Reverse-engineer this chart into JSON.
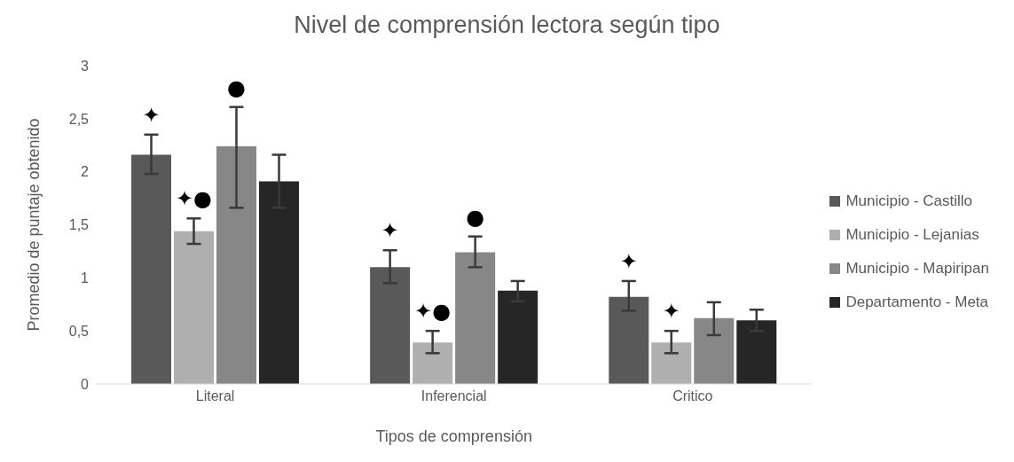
{
  "chart_data": {
    "type": "bar",
    "title": "Nivel de comprensión lectora según tipo",
    "xlabel": "Tipos de comprensión",
    "ylabel": "Promedio de puntaje obtenido",
    "categories": [
      "Literal",
      "Inferencial",
      "Critico"
    ],
    "series": [
      {
        "name": "Municipio - Castillo",
        "color": "#595959",
        "values": [
          2.16,
          1.1,
          0.82
        ],
        "errors": [
          [
            1.98,
            2.35
          ],
          [
            0.95,
            1.26
          ],
          [
            0.69,
            0.97
          ]
        ],
        "value_labels": [
          "✦",
          "✦",
          "✦"
        ]
      },
      {
        "name": "Municipio - Lejanias",
        "color": "#afafaf",
        "values": [
          1.44,
          0.39,
          0.39
        ],
        "errors": [
          [
            1.32,
            1.56
          ],
          [
            0.29,
            0.5
          ],
          [
            0.29,
            0.5
          ]
        ],
        "value_labels": [
          "✦●",
          "✦●",
          "✦"
        ]
      },
      {
        "name": "Municipio - Mapiripan",
        "color": "#878787",
        "values": [
          2.24,
          1.24,
          0.62
        ],
        "errors": [
          [
            1.66,
            2.61
          ],
          [
            1.1,
            1.39
          ],
          [
            0.46,
            0.77
          ]
        ],
        "value_labels": [
          "●",
          "●",
          null
        ]
      },
      {
        "name": "Departamento - Meta",
        "color": "#262626",
        "values": [
          1.91,
          0.88,
          0.6
        ],
        "errors": [
          [
            1.66,
            2.16
          ],
          [
            0.78,
            0.97
          ],
          [
            0.5,
            0.7
          ]
        ]
      }
    ],
    "ylim": [
      0,
      3
    ],
    "yticks": [
      0,
      {
        "value": 0.5,
        "label": "0,5"
      },
      1,
      {
        "value": 1.5,
        "label": "1,5"
      },
      2,
      {
        "value": 2.5,
        "label": "2,5"
      },
      3
    ],
    "grid": false,
    "legend": "right"
  }
}
